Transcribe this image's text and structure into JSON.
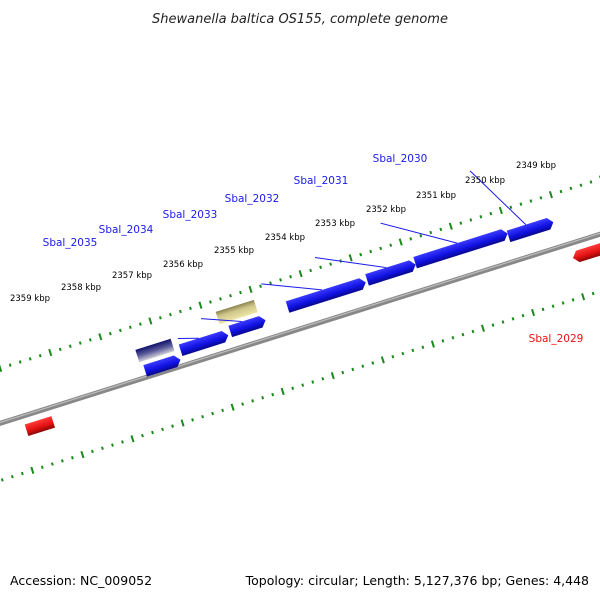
{
  "title": "Shewanella baltica OS155, complete genome",
  "footer": {
    "accession": "Accession: NC_009052",
    "summary": "Topology: circular; Length: 5,127,376 bp; Genes: 4,448"
  },
  "colors": {
    "forward_gene": "#1a1aee",
    "reverse_gene": "#ee1111",
    "backbone": "#888888",
    "ticks": "#1a8a1a",
    "other_feature_1": "#1a1a7a",
    "other_feature_2": "#bdb676"
  },
  "scale_labels": [
    "2349 kbp",
    "2350 kbp",
    "2351 kbp",
    "2352 kbp",
    "2353 kbp",
    "2354 kbp",
    "2355 kbp",
    "2356 kbp",
    "2357 kbp",
    "2358 kbp",
    "2359 kbp"
  ],
  "gene_labels": [
    {
      "name": "Sbal_2030",
      "strand": "forward"
    },
    {
      "name": "Sbal_2031",
      "strand": "forward"
    },
    {
      "name": "Sbal_2032",
      "strand": "forward"
    },
    {
      "name": "Sbal_2033",
      "strand": "forward"
    },
    {
      "name": "Sbal_2034",
      "strand": "forward"
    },
    {
      "name": "Sbal_2035",
      "strand": "forward"
    },
    {
      "name": "Sbal_2029",
      "strand": "reverse"
    }
  ]
}
